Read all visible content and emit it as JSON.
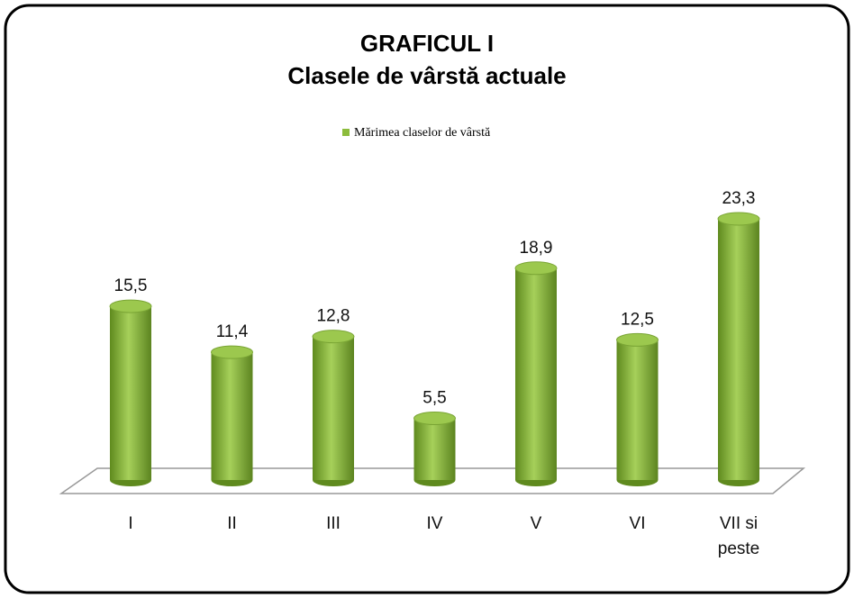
{
  "chart_data": {
    "type": "bar3d",
    "title": "GRAFICUL I",
    "subtitle": "Clasele de vârstă actuale",
    "categories": [
      "I",
      "II",
      "III",
      "IV",
      "V",
      "VI",
      "VII si peste"
    ],
    "series": [
      {
        "name": "Mărimea claselor de vârstă",
        "color": "#8cbc3c",
        "values": [
          15.5,
          11.4,
          12.8,
          5.5,
          18.9,
          12.5,
          23.3
        ],
        "value_labels": [
          "15,5",
          "11,4",
          "12,8",
          "5,5",
          "18,9",
          "12,5",
          "23,3"
        ]
      }
    ],
    "legend": "top"
  }
}
